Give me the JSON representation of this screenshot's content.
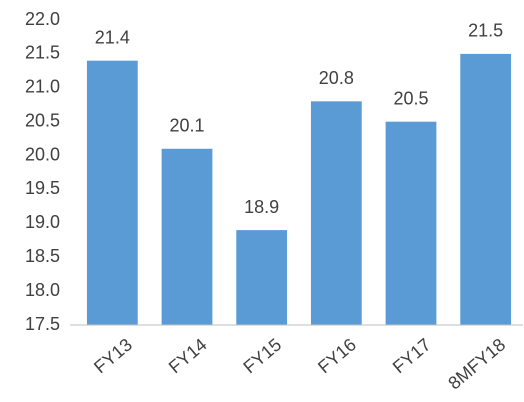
{
  "chart_data": {
    "type": "bar",
    "categories": [
      "FY13",
      "FY14",
      "FY15",
      "FY16",
      "FY17",
      "8MFY18"
    ],
    "values": [
      21.4,
      20.1,
      18.9,
      20.8,
      20.5,
      21.5
    ],
    "color": "#5b9bd5",
    "ylim": [
      17.5,
      22.0
    ],
    "yticks": [
      17.5,
      {
        "value": 18,
        "label": "18.0"
      },
      18.5,
      {
        "value": 19,
        "label": "19.0"
      },
      19.5,
      {
        "value": 20,
        "label": "20.0"
      },
      20.5,
      {
        "value": 21,
        "label": "21.0"
      },
      21.5,
      {
        "value": 22,
        "label": "22.0"
      }
    ],
    "grid": false
  }
}
